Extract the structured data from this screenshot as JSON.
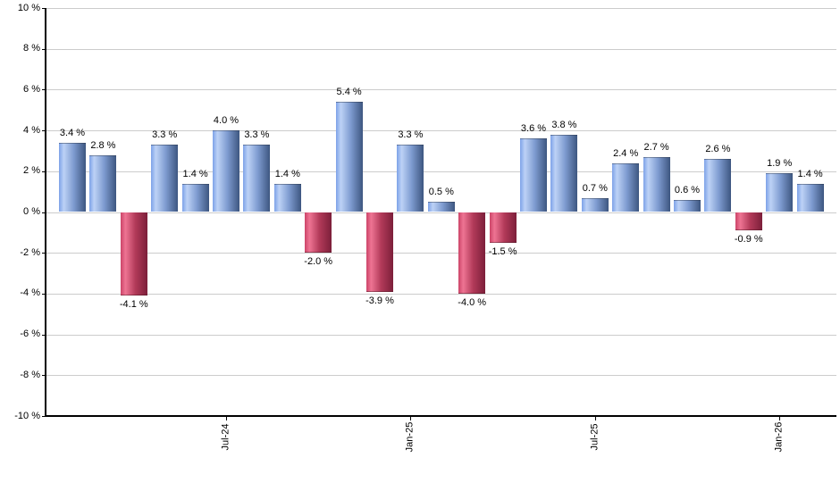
{
  "chart_data": {
    "type": "bar",
    "title": "",
    "xlabel": "",
    "ylabel": "",
    "unit": "%",
    "ylim": [
      -10,
      10
    ],
    "y_tick_step": 2,
    "grid": "horizontal",
    "legend": "none",
    "y_tick_labels": [
      "10 %",
      "8 %",
      "6 %",
      "4 %",
      "2 %",
      "0 %",
      "-2 %",
      "-4 %",
      "-6 %",
      "-8 %",
      "-10 %"
    ],
    "values": [
      3.4,
      2.8,
      -4.1,
      3.3,
      1.4,
      4.0,
      3.3,
      1.4,
      -2.0,
      5.4,
      -3.9,
      3.3,
      0.5,
      -4.0,
      -1.5,
      3.6,
      3.8,
      0.7,
      2.4,
      2.7,
      0.6,
      2.6,
      -0.9,
      1.9,
      1.4
    ],
    "value_labels": [
      "3.4 %",
      "2.8 %",
      "-4.1 %",
      "3.3 %",
      "1.4 %",
      "4.0 %",
      "3.3 %",
      "1.4 %",
      "-2.0 %",
      "5.4 %",
      "-3.9 %",
      "3.3 %",
      "0.5 %",
      "-4.0 %",
      "-1.5 %",
      "3.6 %",
      "3.8 %",
      "0.7 %",
      "2.4 %",
      "2.7 %",
      "0.6 %",
      "2.6 %",
      "-0.9 %",
      "1.9 %",
      "1.4 %"
    ],
    "x_ticks": [
      {
        "label": "Jul-24",
        "bar_index": 5
      },
      {
        "label": "Jan-25",
        "bar_index": 11
      },
      {
        "label": "Jul-25",
        "bar_index": 17
      },
      {
        "label": "Jan-26",
        "bar_index": 23
      }
    ],
    "colors": {
      "positive_bar": "#7e9bd0",
      "negative_bar": "#c04465",
      "positive_gradient": [
        "#7da2e8",
        "#bdd2f6",
        "#7e9bd0",
        "#3d5680"
      ],
      "negative_gradient": [
        "#cc4468",
        "#ee7493",
        "#b23a59",
        "#7c1f3a"
      ],
      "gridline": "#cccccc",
      "axis": "#000000",
      "label_text": "#000000"
    }
  }
}
